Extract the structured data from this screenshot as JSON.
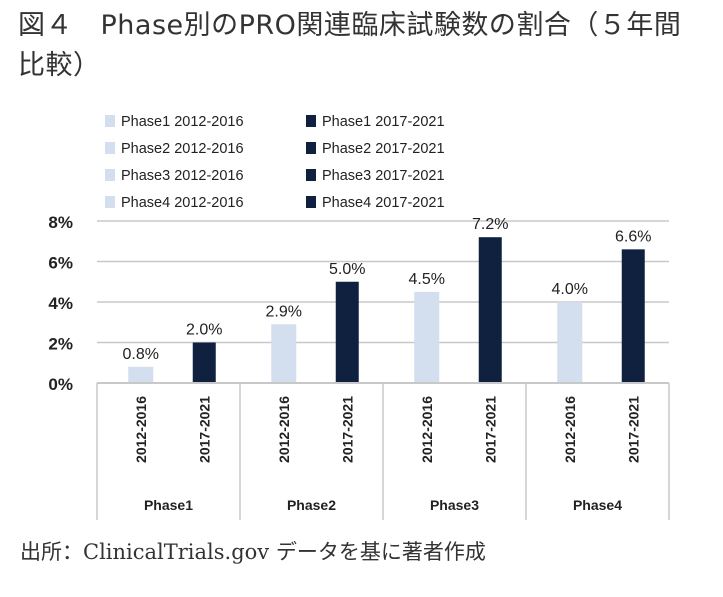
{
  "title": "図４　Phase別のPRO関連臨床試験数の割合（５年間比較）",
  "footer": "出所：ClinicalTrials.gov データを基に著者作成",
  "colors": {
    "period1": "#d3deee",
    "period2": "#10213f",
    "grid": "#c8c8c8",
    "text": "#222222"
  },
  "chart_data": {
    "type": "bar",
    "groups": [
      "Phase1",
      "Phase2",
      "Phase3",
      "Phase4"
    ],
    "categories": [
      "2012-2016",
      "2017-2021"
    ],
    "values": [
      [
        0.8,
        2.0
      ],
      [
        2.9,
        5.0
      ],
      [
        4.5,
        7.2
      ],
      [
        4.0,
        6.6
      ]
    ],
    "data_labels": [
      [
        "0.8%",
        "2.0%"
      ],
      [
        "2.9%",
        "5.0%"
      ],
      [
        "4.5%",
        "7.2%"
      ],
      [
        "4.0%",
        "6.6%"
      ]
    ],
    "legend": [
      [
        "Phase1 2012-2016",
        "Phase1 2017-2021"
      ],
      [
        "Phase2 2012-2016",
        "Phase2 2017-2021"
      ],
      [
        "Phase3 2012-2016",
        "Phase3 2017-2021"
      ],
      [
        "Phase4 2012-2016",
        "Phase4 2017-2021"
      ]
    ],
    "legend_position": "top",
    "yticks": [
      "0%",
      "2%",
      "4%",
      "6%",
      "8%"
    ],
    "ylim": [
      0,
      8
    ],
    "grid": true
  }
}
